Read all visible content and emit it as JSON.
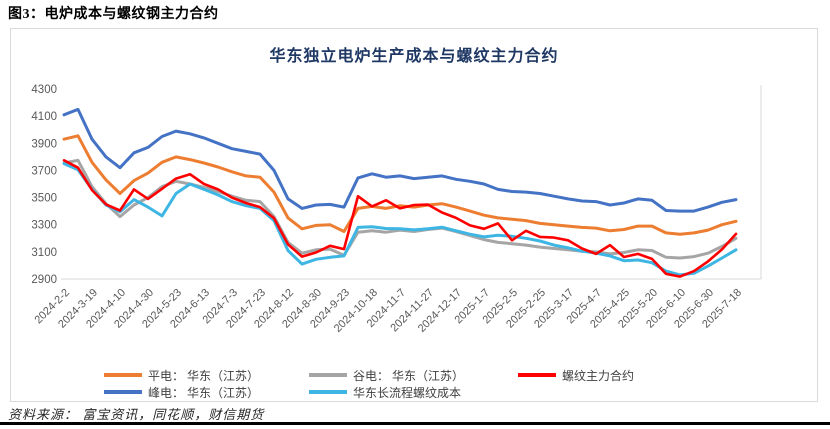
{
  "page": {
    "header": "图3：电炉成本与螺纹钢主力合约",
    "source_note": "资料来源： 富宝资讯，同花顺，财信期货"
  },
  "chart_data": {
    "type": "line",
    "title": "华东独立电炉生产成本与螺纹主力合约",
    "ylim": [
      2900,
      4300
    ],
    "ytick_step": 200,
    "yticks": [
      4300,
      4100,
      3900,
      3700,
      3500,
      3300,
      3100,
      2900
    ],
    "grid": "off",
    "legend_position": "bottom",
    "axis_color": "#595959",
    "border_color": "#d9d9d9",
    "x_tick_labels": [
      "2024-2-2",
      "2024-3-19",
      "2024-4-10",
      "2024-4-30",
      "2024-5-23",
      "2024-6-13",
      "2024-7-3",
      "2024-7-23",
      "2024-8-12",
      "2024-8-30",
      "2024-9-23",
      "2024-10-18",
      "2024-11-7",
      "2024-11-27",
      "2024-12-17",
      "2025-1-7",
      "2025-2-5",
      "2025-2-25",
      "2025-3-17",
      "2025-4-7",
      "2025-4-25",
      "2025-5-20",
      "2025-6-10",
      "2025-6-30",
      "2025-7-18"
    ],
    "series": [
      {
        "name": "平电： 华东（江苏）",
        "color": "#ED7D31",
        "values": [
          3930,
          3955,
          3760,
          3630,
          3530,
          3625,
          3680,
          3760,
          3800,
          3780,
          3755,
          3725,
          3690,
          3660,
          3650,
          3540,
          3350,
          3270,
          3295,
          3300,
          3250,
          3420,
          3435,
          3420,
          3440,
          3430,
          3445,
          3455,
          3430,
          3400,
          3370,
          3350,
          3340,
          3330,
          3310,
          3300,
          3290,
          3280,
          3275,
          3255,
          3265,
          3290,
          3290,
          3240,
          3230,
          3240,
          3260,
          3300,
          3325
        ]
      },
      {
        "name": "峰电： 华东（江苏）",
        "color": "#4472C4",
        "values": [
          4110,
          4150,
          3930,
          3800,
          3720,
          3830,
          3870,
          3950,
          3990,
          3970,
          3940,
          3900,
          3860,
          3840,
          3820,
          3700,
          3490,
          3420,
          3445,
          3450,
          3430,
          3645,
          3675,
          3650,
          3660,
          3640,
          3650,
          3660,
          3635,
          3620,
          3600,
          3560,
          3545,
          3540,
          3530,
          3510,
          3490,
          3475,
          3470,
          3445,
          3460,
          3490,
          3480,
          3405,
          3400,
          3400,
          3430,
          3465,
          3485
        ]
      },
      {
        "name": "谷电： 华东（江苏）",
        "color": "#A5A5A5",
        "values": [
          3755,
          3775,
          3580,
          3455,
          3360,
          3445,
          3500,
          3580,
          3620,
          3600,
          3575,
          3545,
          3510,
          3480,
          3470,
          3360,
          3170,
          3090,
          3115,
          3120,
          3075,
          3245,
          3255,
          3245,
          3260,
          3250,
          3265,
          3275,
          3250,
          3220,
          3190,
          3170,
          3160,
          3150,
          3135,
          3125,
          3115,
          3105,
          3100,
          3085,
          3095,
          3115,
          3110,
          3060,
          3055,
          3065,
          3090,
          3140,
          3200
        ]
      },
      {
        "name": "华东长流程螺纹成本",
        "color": "#3EB6E4",
        "values": [
          3750,
          3705,
          3560,
          3445,
          3395,
          3485,
          3430,
          3365,
          3530,
          3600,
          3560,
          3520,
          3470,
          3440,
          3420,
          3330,
          3110,
          3010,
          3045,
          3060,
          3070,
          3280,
          3285,
          3272,
          3270,
          3262,
          3270,
          3282,
          3255,
          3230,
          3210,
          3222,
          3215,
          3200,
          3180,
          3150,
          3130,
          3105,
          3090,
          3070,
          3035,
          3040,
          3020,
          2958,
          2930,
          2942,
          2995,
          3055,
          3115
        ]
      },
      {
        "name": "螺纹主力合约",
        "color": "#FF0000",
        "values": [
          3775,
          3720,
          3555,
          3450,
          3405,
          3560,
          3490,
          3565,
          3640,
          3672,
          3600,
          3560,
          3500,
          3460,
          3430,
          3348,
          3155,
          3065,
          3095,
          3145,
          3120,
          3510,
          3435,
          3480,
          3420,
          3445,
          3448,
          3390,
          3350,
          3295,
          3270,
          3310,
          3185,
          3255,
          3210,
          3205,
          3185,
          3125,
          3085,
          3150,
          3062,
          3085,
          3048,
          2938,
          2918,
          2958,
          3030,
          3118,
          3232
        ]
      }
    ]
  }
}
